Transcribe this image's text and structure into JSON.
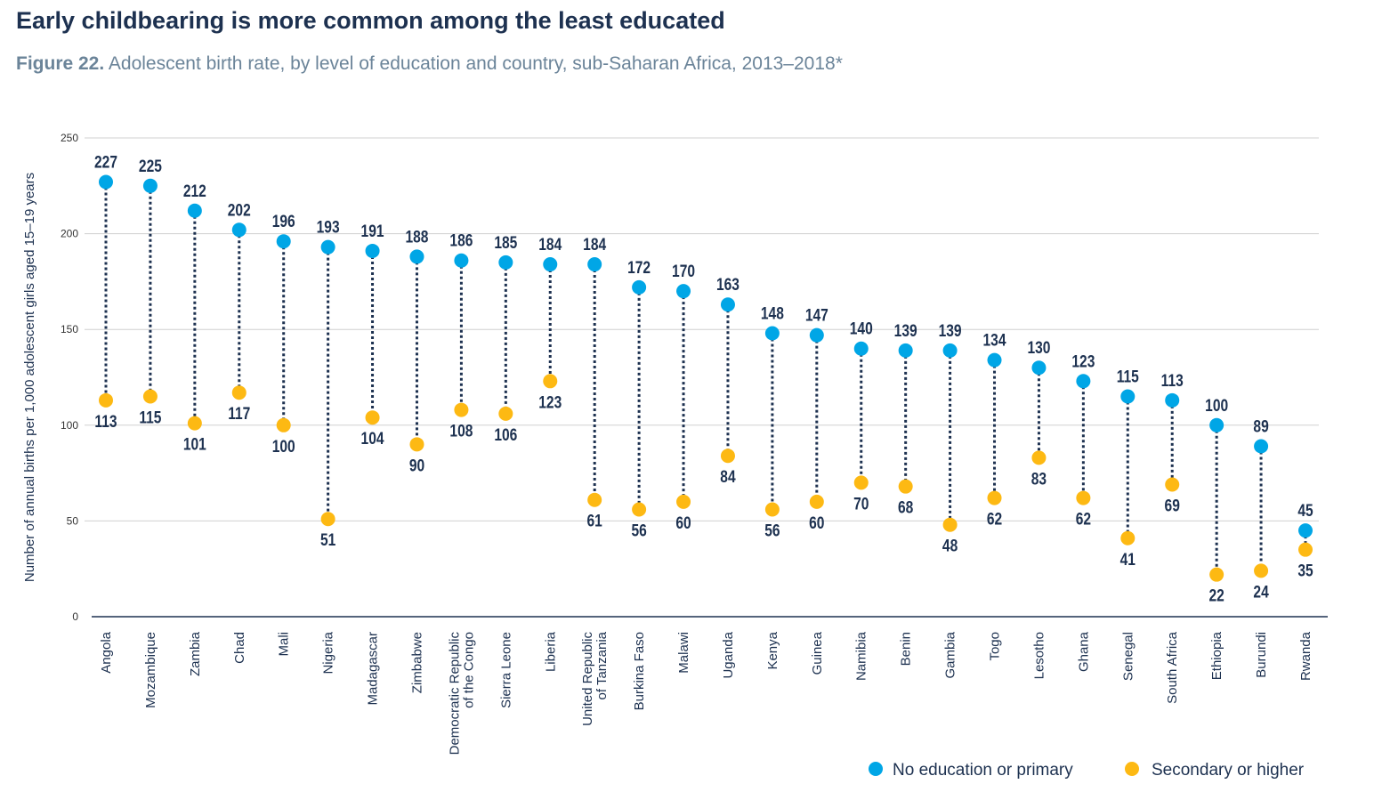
{
  "title": "Early childbearing is more common among the least educated",
  "subtitle_prefix": "Figure 22.",
  "subtitle": "Adolescent birth rate, by level of education and country, sub-Saharan Africa, 2013–2018*",
  "chart_data": {
    "type": "dumbbell",
    "ylabel": "Number of annual births per 1,000 adolescent girls aged 15–19 years",
    "ylim": [
      0,
      250
    ],
    "yticks": [
      0,
      50,
      100,
      150,
      200,
      250
    ],
    "grid": true,
    "legend_position": "bottom-right",
    "categories": [
      [
        "Angola"
      ],
      [
        "Mozambique"
      ],
      [
        "Zambia"
      ],
      [
        "Chad"
      ],
      [
        "Mali"
      ],
      [
        "Nigeria"
      ],
      [
        "Madagascar"
      ],
      [
        "Zimbabwe"
      ],
      [
        "Democratic Republic",
        "of the Congo"
      ],
      [
        "Sierra Leone"
      ],
      [
        "Liberia"
      ],
      [
        "United Republic",
        "of Tanzania"
      ],
      [
        "Burkina Faso"
      ],
      [
        "Malawi"
      ],
      [
        "Uganda"
      ],
      [
        "Kenya"
      ],
      [
        "Guinea"
      ],
      [
        "Namibia"
      ],
      [
        "Benin"
      ],
      [
        "Gambia"
      ],
      [
        "Togo"
      ],
      [
        "Lesotho"
      ],
      [
        "Ghana"
      ],
      [
        "Senegal"
      ],
      [
        "South Africa"
      ],
      [
        "Ethiopia"
      ],
      [
        "Burundi"
      ],
      [
        "Rwanda"
      ]
    ],
    "series": [
      {
        "name": "No education or primary",
        "color": "#00a6e6",
        "values": [
          227,
          225,
          212,
          202,
          196,
          193,
          191,
          188,
          186,
          185,
          184,
          184,
          172,
          170,
          163,
          148,
          147,
          140,
          139,
          139,
          134,
          130,
          123,
          115,
          113,
          100,
          89,
          45
        ]
      },
      {
        "name": "Secondary or higher",
        "color": "#fdb913",
        "values": [
          113,
          115,
          101,
          117,
          100,
          51,
          104,
          90,
          108,
          106,
          123,
          61,
          56,
          60,
          84,
          56,
          60,
          70,
          68,
          48,
          62,
          83,
          62,
          41,
          69,
          22,
          24,
          35
        ]
      }
    ]
  }
}
